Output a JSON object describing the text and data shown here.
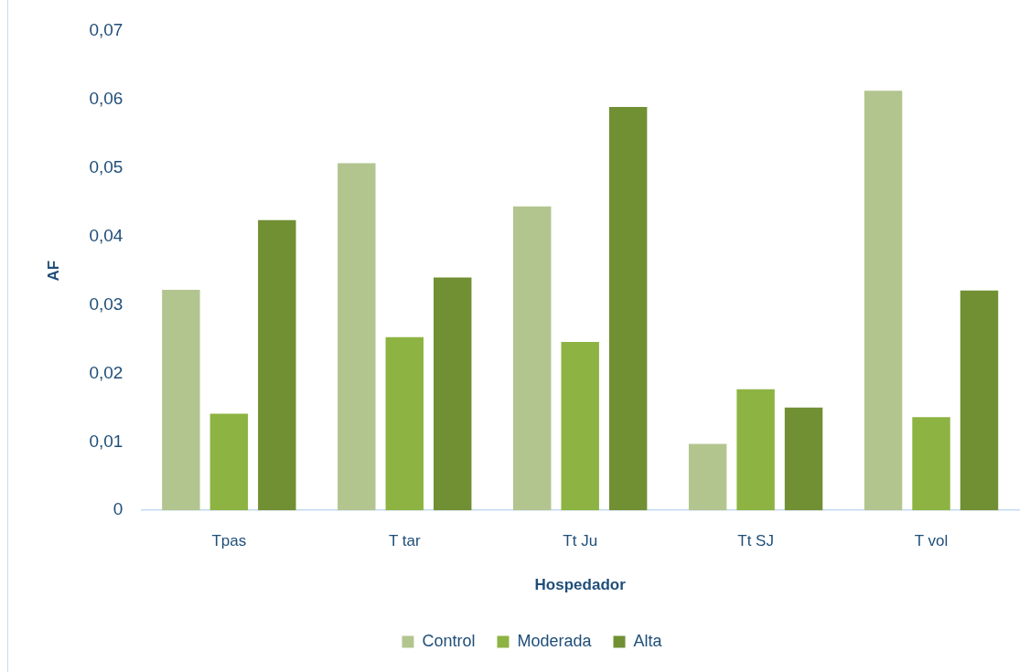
{
  "chart_data": {
    "type": "bar",
    "xlabel": "Hospedador",
    "ylabel": "AF",
    "categories": [
      "Tpas",
      "T tar",
      "Tt Ju",
      "Tt SJ",
      "T vol"
    ],
    "series": [
      {
        "name": "Control",
        "color": "#b3c58f",
        "values": [
          0.0322,
          0.0507,
          0.0444,
          0.0097,
          0.0613
        ]
      },
      {
        "name": "Moderada",
        "color": "#8db342",
        "values": [
          0.0141,
          0.0253,
          0.0246,
          0.0177,
          0.0136
        ]
      },
      {
        "name": "Alta",
        "color": "#718f33",
        "values": [
          0.0424,
          0.034,
          0.0589,
          0.015,
          0.0321
        ]
      }
    ],
    "ylim": [
      0,
      0.07
    ],
    "yticks": [
      0,
      {
        "value": 0.01,
        "label": "0,01"
      },
      {
        "value": 0.02,
        "label": "0,02"
      },
      {
        "value": 0.03,
        "label": "0,03"
      },
      {
        "value": 0.04,
        "label": "0,04"
      },
      {
        "value": 0.05,
        "label": "0,05"
      },
      {
        "value": 0.06,
        "label": "0,06"
      },
      {
        "value": 0.07,
        "label": "0,07"
      }
    ],
    "grid": false,
    "legend": "bottom"
  }
}
